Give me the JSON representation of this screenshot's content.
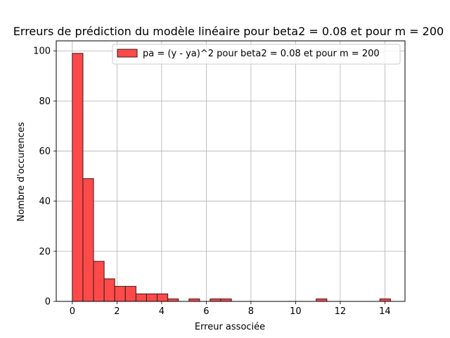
{
  "chart_data": {
    "type": "bar",
    "title": "Erreurs de prédiction du modèle linéaire pour beta2 = 0.08 et pour m = 200",
    "xlabel": "Erreur associée",
    "ylabel": "Nombre d'occurences",
    "xlim": [
      -0.72,
      14.9
    ],
    "ylim": [
      0,
      104
    ],
    "xticks": [
      0,
      2,
      4,
      6,
      8,
      10,
      12,
      14
    ],
    "yticks": [
      0,
      20,
      40,
      60,
      80,
      100
    ],
    "grid": true,
    "legend": {
      "position": "top-right",
      "label": "pa = (y - ya)^2 pour beta2 = 0.08 et pour m = 200"
    },
    "bar_color": "#ff4a4a",
    "edge_color": "#3a1a1a",
    "series": [
      {
        "name": "pa = (y - ya)^2 pour beta2 = 0.08 et pour m = 200",
        "bins": [
          {
            "x0": 0.0,
            "x1": 0.475,
            "count": 99
          },
          {
            "x0": 0.475,
            "x1": 0.95,
            "count": 49
          },
          {
            "x0": 0.95,
            "x1": 1.425,
            "count": 16
          },
          {
            "x0": 1.425,
            "x1": 1.9,
            "count": 9
          },
          {
            "x0": 1.9,
            "x1": 2.375,
            "count": 6
          },
          {
            "x0": 2.375,
            "x1": 2.85,
            "count": 6
          },
          {
            "x0": 2.85,
            "x1": 3.325,
            "count": 3
          },
          {
            "x0": 3.325,
            "x1": 3.8,
            "count": 3
          },
          {
            "x0": 3.8,
            "x1": 4.275,
            "count": 3
          },
          {
            "x0": 4.275,
            "x1": 4.75,
            "count": 1
          },
          {
            "x0": 5.225,
            "x1": 5.7,
            "count": 1
          },
          {
            "x0": 6.175,
            "x1": 6.65,
            "count": 1
          },
          {
            "x0": 6.65,
            "x1": 7.125,
            "count": 1
          },
          {
            "x0": 10.925,
            "x1": 11.4,
            "count": 1
          },
          {
            "x0": 13.775,
            "x1": 14.25,
            "count": 1
          }
        ]
      }
    ]
  }
}
